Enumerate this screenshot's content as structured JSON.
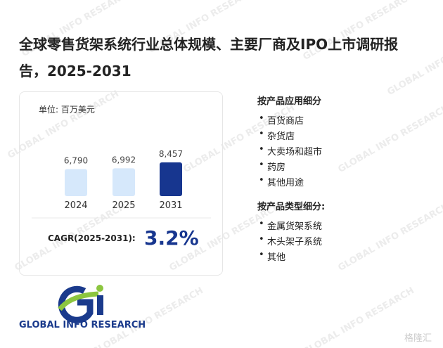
{
  "header": {
    "title": "全球零售货架系统行业总体规模、主要厂商及IPO上市调研报告，2025-2031"
  },
  "unit": "单位: 百万美元",
  "chart_data": {
    "type": "bar",
    "categories": [
      "2024",
      "2025",
      "2031"
    ],
    "values": [
      6790,
      6992,
      8457
    ],
    "value_labels": [
      "6,790",
      "6,992",
      "8,457"
    ],
    "colors": [
      "#d6e8fb",
      "#d6e8fb",
      "#17368f"
    ]
  },
  "cagr": {
    "label": "CAGR(2025-2031):",
    "value": "3.2%"
  },
  "segments": [
    {
      "title": "按产品应用细分",
      "items": [
        "百货商店",
        "杂货店",
        "大卖场和超市",
        "药房",
        "其他用途"
      ]
    },
    {
      "title": "按产品类型细分:",
      "items": [
        "金属货架系统",
        "木头架子系统",
        "其他"
      ]
    }
  ],
  "logo": {
    "text": "GLOBAL INFO RESEARCH"
  },
  "watermark": {
    "text": "GLOBAL INFO RESEARCH",
    "source": "格隆汇"
  }
}
